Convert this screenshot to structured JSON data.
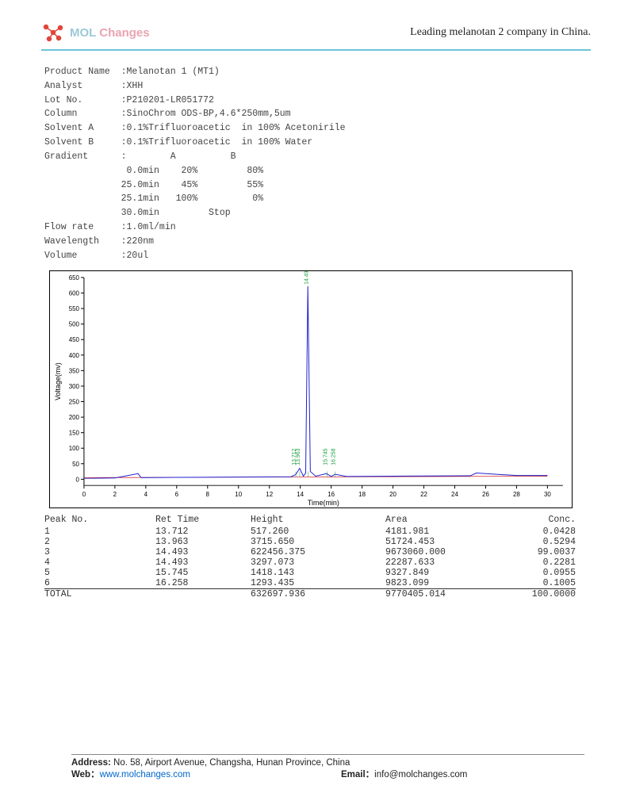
{
  "header": {
    "logo_mol": "MOL",
    "logo_changes": "Changes",
    "tagline": "Leading melanotan 2 company in China."
  },
  "meta": {
    "product_name_label": "Product Name",
    "product_name": ":Melanotan 1 (MT1)",
    "analyst_label": "Analyst",
    "analyst": ":XHH",
    "lot_label": "Lot No.",
    "lot": ":P210201-LR051772",
    "column_label": "Column",
    "column": ":SinoChrom ODS-BP,4.6*250mm,5um",
    "solvent_a_label": "Solvent A",
    "solvent_a": ":0.1%Trifluoroacetic  in 100% Acetonirile",
    "solvent_b_label": "Solvent B",
    "solvent_b": ":0.1%Trifluoroacetic  in 100% Water",
    "gradient_label": "Gradient",
    "gradient_head": ":        A          B",
    "g1": " 0.0min    20%         80%",
    "g2": "25.0min    45%         55%",
    "g3": "25.1min   100%          0%",
    "g4": "30.0min         Stop",
    "flow_label": "Flow rate",
    "flow": ":1.0ml/min",
    "wave_label": "Wavelength",
    "wave": ":220nm",
    "vol_label": "Volume",
    "vol": ":20ul"
  },
  "chart": {
    "type": "line",
    "xlabel": "Time(min)",
    "ylabel": "Voltage(mv)",
    "xlim": [
      0,
      31
    ],
    "ylim": [
      -20,
      650
    ],
    "xticks": [
      0,
      2,
      4,
      6,
      8,
      10,
      12,
      14,
      16,
      18,
      20,
      22,
      24,
      26,
      28,
      30
    ],
    "yticks": [
      0,
      50,
      100,
      150,
      200,
      250,
      300,
      350,
      400,
      450,
      500,
      550,
      600,
      650
    ],
    "line_color": "#2020d0",
    "baseline_color": "#d03030",
    "peak_label_color": "#20a040",
    "background_color": "#ffffff",
    "axis_color": "#000000",
    "tick_fontsize": 8,
    "label_fontsize": 9,
    "main_peak_x": 14.493,
    "main_peak_y": 622,
    "peak_labels": [
      {
        "x": 13.712,
        "text": "13.712"
      },
      {
        "x": 13.963,
        "text": "13.963"
      },
      {
        "x": 14.493,
        "text": "14.493"
      },
      {
        "x": 15.745,
        "text": "15.745"
      },
      {
        "x": 16.258,
        "text": "16.258"
      }
    ],
    "trace": [
      {
        "x": 0,
        "y": 3
      },
      {
        "x": 2,
        "y": 4
      },
      {
        "x": 3.5,
        "y": 18
      },
      {
        "x": 3.7,
        "y": 5
      },
      {
        "x": 6,
        "y": 6
      },
      {
        "x": 10,
        "y": 7
      },
      {
        "x": 13.4,
        "y": 8
      },
      {
        "x": 13.7,
        "y": 15
      },
      {
        "x": 13.96,
        "y": 35
      },
      {
        "x": 14.2,
        "y": 10
      },
      {
        "x": 14.35,
        "y": 20
      },
      {
        "x": 14.49,
        "y": 622
      },
      {
        "x": 14.65,
        "y": 25
      },
      {
        "x": 15.0,
        "y": 10
      },
      {
        "x": 15.7,
        "y": 18
      },
      {
        "x": 16.0,
        "y": 9
      },
      {
        "x": 16.26,
        "y": 16
      },
      {
        "x": 17,
        "y": 9
      },
      {
        "x": 20,
        "y": 10
      },
      {
        "x": 25,
        "y": 11
      },
      {
        "x": 25.4,
        "y": 20
      },
      {
        "x": 28,
        "y": 12
      },
      {
        "x": 30,
        "y": 12
      }
    ]
  },
  "table": {
    "headers": [
      "Peak No.",
      "Ret Time",
      "Height",
      "Area",
      "Conc."
    ],
    "rows": [
      [
        "1",
        "13.712",
        "517.260",
        "4181.981",
        "0.0428"
      ],
      [
        "2",
        "13.963",
        "3715.650",
        "51724.453",
        "0.5294"
      ],
      [
        "3",
        "14.493",
        "622456.375",
        "9673060.000",
        "99.0037"
      ],
      [
        "4",
        "14.493",
        "3297.073",
        "22287.633",
        "0.2281"
      ],
      [
        "5",
        "15.745",
        "1418.143",
        "9327.849",
        "0.0955"
      ],
      [
        "6",
        "16.258",
        "1293.435",
        "9823.099",
        "0.1005"
      ]
    ],
    "total": [
      "TOTAL",
      "",
      "632697.936",
      "9770405.014",
      "100.0000"
    ]
  },
  "footer": {
    "address_label": "Address:",
    "address": " No. 58, Airport Avenue, Changsha, Hunan Province, China",
    "web_label": "Web：",
    "web": "www.molchanges.com",
    "email_label": "Email：",
    "email": "info@molchanges.com"
  }
}
